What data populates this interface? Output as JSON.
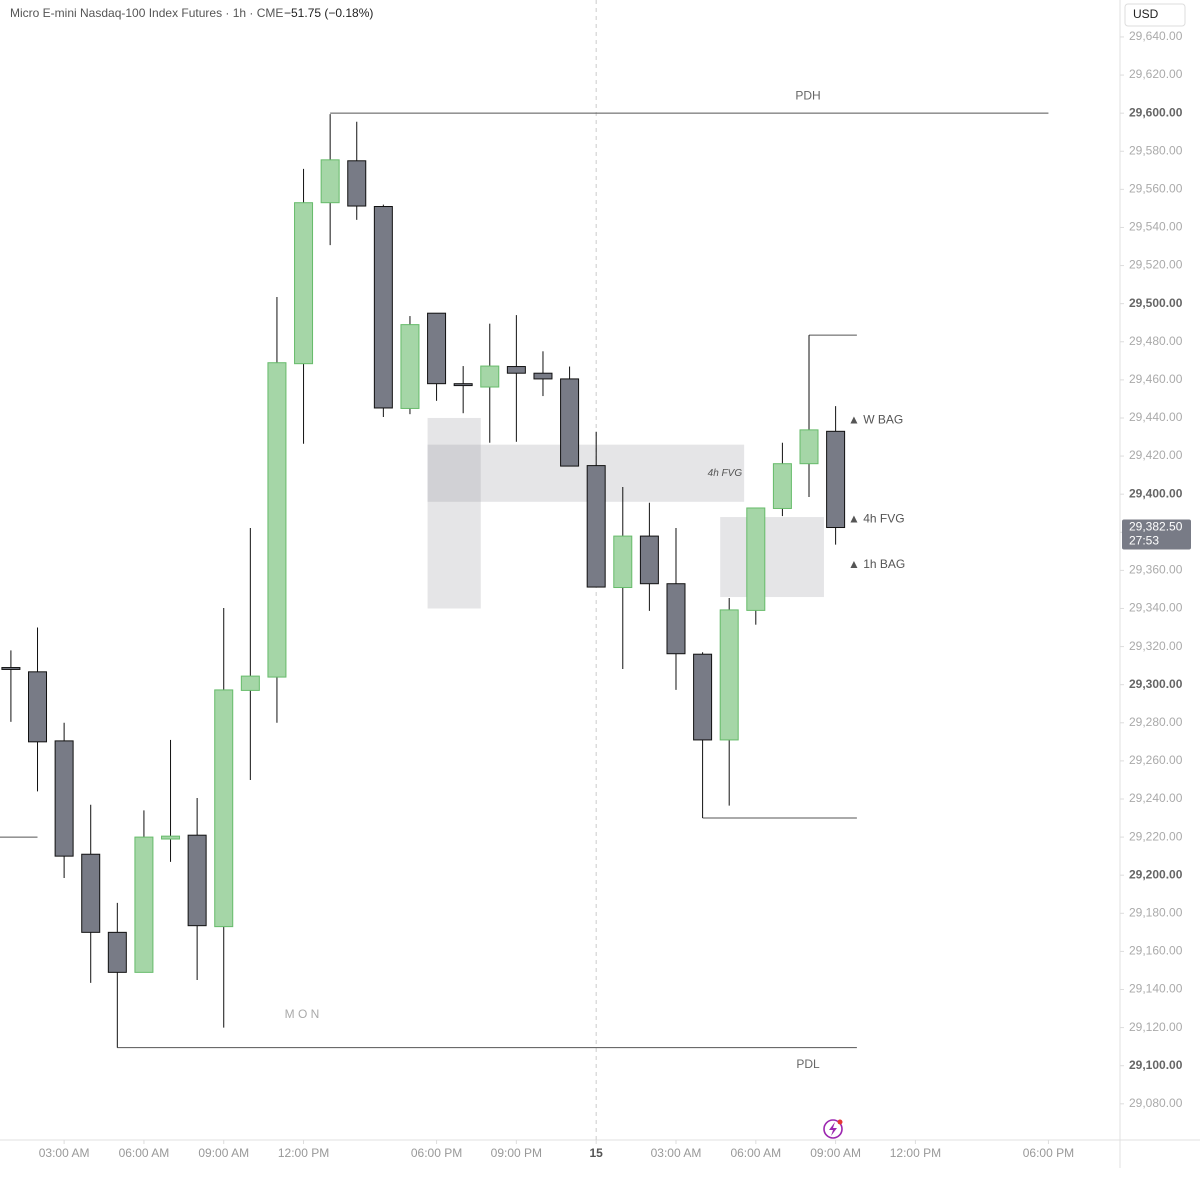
{
  "chart_data": {
    "type": "candlestick",
    "title": "Micro E-mini Nasdaq-100 Index Futures · 1h · CME",
    "change": "−51.75 (−0.18%)",
    "currency": "USD",
    "x": [
      0,
      1,
      2,
      3,
      4,
      5,
      6,
      7,
      8,
      9,
      10,
      11,
      12,
      13,
      14,
      15,
      16,
      17,
      18,
      19,
      20,
      21,
      22,
      23,
      24,
      25,
      26,
      27,
      28,
      29,
      30,
      31
    ],
    "open": [
      29309,
      29306.75,
      29270.5,
      29211,
      29170,
      29149,
      29219,
      29221,
      29173,
      29297,
      29304,
      29468.5,
      29553,
      29575,
      29551,
      29445,
      29495,
      29458,
      29456.25,
      29467,
      29463.5,
      29460.5,
      29415,
      29351,
      29378,
      29353,
      29316,
      29271,
      29339,
      29392.5,
      29416,
      29433
    ],
    "high": [
      29318,
      29330,
      29280,
      29237,
      29185.5,
      29234,
      29271,
      29240.5,
      29340.25,
      29382.25,
      29503.5,
      29570.75,
      29599.5,
      29595.5,
      29552,
      29493.5,
      29495,
      29467.25,
      29489.5,
      29494,
      29475,
      29467,
      29432.75,
      29403.75,
      29395.5,
      29382.25,
      29317,
      29345.5,
      29393,
      29427,
      29483.5,
      29446.25
    ],
    "low": [
      29280.5,
      29244,
      29198.5,
      29143.5,
      29109.5,
      29149,
      29207,
      29145,
      29120,
      29250,
      29280,
      29426.5,
      29530.75,
      29544,
      29440.5,
      29442,
      29449,
      29442.5,
      29427,
      29427.5,
      29451.5,
      29414.75,
      29351.25,
      29308.25,
      29338.75,
      29297.25,
      29230,
      29236.5,
      29331.5,
      29388.5,
      29398.5,
      29373.5
    ],
    "close": [
      29308,
      29270,
      29210,
      29170,
      29149,
      29220,
      29220.5,
      29173.5,
      29297.25,
      29304.5,
      29469,
      29553,
      29575.5,
      29551.25,
      29445.25,
      29489,
      29458,
      29457,
      29467.25,
      29463.5,
      29460.5,
      29414.75,
      29351.25,
      29378,
      29353,
      29316.25,
      29271,
      29339.25,
      29392.75,
      29416,
      29433.75,
      29382.5
    ],
    "up_color": "#a5d6a7",
    "up_border": "#66bb6a",
    "down_color": "#787b86",
    "down_border": "#111111",
    "xlim": [
      -0.41,
      41.69
    ],
    "xticks": [
      {
        "value": 2,
        "label": "03:00 AM"
      },
      {
        "value": 5,
        "label": "06:00 AM"
      },
      {
        "value": 8,
        "label": "09:00 AM"
      },
      {
        "value": 11,
        "label": "12:00 PM"
      },
      {
        "value": 16,
        "label": "06:00 PM"
      },
      {
        "value": 19,
        "label": "09:00 PM"
      },
      {
        "value": 22,
        "label": "15"
      },
      {
        "value": 25,
        "label": "03:00 AM"
      },
      {
        "value": 28,
        "label": "06:00 AM"
      },
      {
        "value": 31,
        "label": "09:00 AM"
      },
      {
        "value": 34,
        "label": "12:00 PM"
      },
      {
        "value": 39,
        "label": "06:00 PM"
      }
    ],
    "ylim": [
      29061,
      29659.4
    ],
    "yticks": [
      {
        "value": 29640,
        "label": "29,640.00"
      },
      {
        "value": 29620,
        "label": "29,620.00"
      },
      {
        "value": 29600,
        "label": "29,600.00"
      },
      {
        "value": 29580,
        "label": "29,580.00"
      },
      {
        "value": 29560,
        "label": "29,560.00"
      },
      {
        "value": 29540,
        "label": "29,540.00"
      },
      {
        "value": 29520,
        "label": "29,520.00"
      },
      {
        "value": 29500,
        "label": "29,500.00"
      },
      {
        "value": 29480,
        "label": "29,480.00"
      },
      {
        "value": 29460,
        "label": "29,460.00"
      },
      {
        "value": 29440,
        "label": "29,440.00"
      },
      {
        "value": 29420,
        "label": "29,420.00"
      },
      {
        "value": 29400,
        "label": "29,400.00"
      },
      {
        "value": 29380,
        "label": "29,380.00"
      },
      {
        "value": 29360,
        "label": "29,360.00"
      },
      {
        "value": 29340,
        "label": "29,340.00"
      },
      {
        "value": 29320,
        "label": "29,320.00"
      },
      {
        "value": 29300,
        "label": "29,300.00"
      },
      {
        "value": 29280,
        "label": "29,280.00"
      },
      {
        "value": 29260,
        "label": "29,260.00"
      },
      {
        "value": 29240,
        "label": "29,240.00"
      },
      {
        "value": 29220,
        "label": "29,220.00"
      },
      {
        "value": 29200,
        "label": "29,200.00"
      },
      {
        "value": 29180,
        "label": "29,180.00"
      },
      {
        "value": 29160,
        "label": "29,160.00"
      },
      {
        "value": 29140,
        "label": "29,140.00"
      },
      {
        "value": 29120,
        "label": "29,120.00"
      },
      {
        "value": 29100,
        "label": "29,100.00"
      },
      {
        "value": 29080,
        "label": "29,080.00"
      }
    ],
    "last_price": {
      "value": 29382.5,
      "label": "29,382.50",
      "countdown": "27:53"
    },
    "levels": [
      {
        "label": "PDH",
        "value": 29600,
        "from": 12,
        "to": 39
      },
      {
        "label": "PDL",
        "value": 29109.5,
        "from": 4,
        "to": 31.8
      },
      {
        "value": 29483.5,
        "from": 30,
        "to": 31.8
      },
      {
        "value": 29230,
        "from": 26,
        "to": 31.8
      },
      {
        "value": 29220,
        "from": -0.41,
        "to": 1
      }
    ],
    "zones": [
      {
        "from": 16,
        "to": 18,
        "high": 29440,
        "low": 29340
      },
      {
        "label": "4h FVG",
        "from": 16,
        "to": 27.9,
        "high": 29426,
        "low": 29396
      },
      {
        "from": 27,
        "to": 30.9,
        "high": 29388,
        "low": 29346
      }
    ],
    "markers": [
      {
        "label": "▲ W BAG",
        "value": 29438.75
      },
      {
        "label": "▲ 4h FVG",
        "value": 29386.75
      },
      {
        "label": "▲ 1h BAG",
        "value": 29363
      }
    ],
    "session_label": "M O N"
  }
}
